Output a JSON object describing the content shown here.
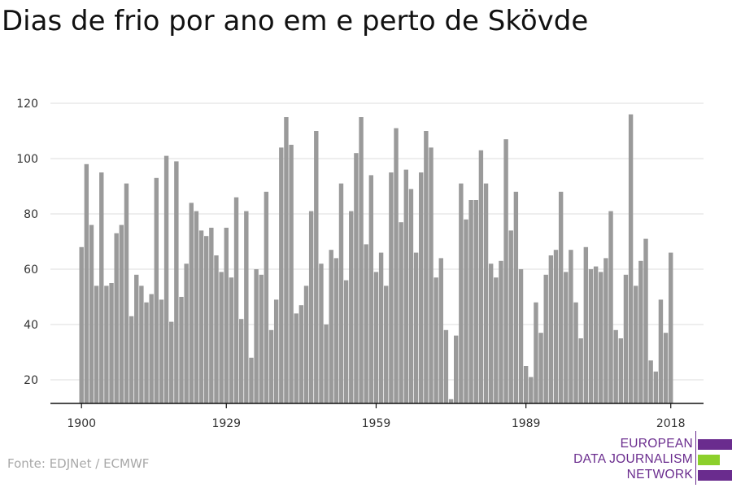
{
  "title": "Dias de frio por ano em e perto de Skövde",
  "source": "Fonte: EDJNet / ECMWF",
  "logo": {
    "lines": [
      "EUROPEAN",
      "DATA JOURNALISM",
      "NETWORK"
    ],
    "colors": {
      "purple": "#6a2c8e",
      "green": "#8cd02b"
    }
  },
  "colors": {
    "bar": "#9a9a9a",
    "grid": "#dddddd",
    "axis": "#111111",
    "text": "#333333"
  },
  "chart_data": {
    "type": "bar",
    "title": "Dias de frio por ano em e perto de Skövde",
    "xlabel": "",
    "ylabel": "",
    "x_tick_labels": [
      "1900",
      "1929",
      "1959",
      "1989",
      "2018"
    ],
    "y_ticks": [
      20,
      40,
      60,
      80,
      100,
      120
    ],
    "ylim": [
      11,
      125
    ],
    "grid": true,
    "categories": [
      1900,
      1901,
      1902,
      1903,
      1904,
      1905,
      1906,
      1907,
      1908,
      1909,
      1910,
      1911,
      1912,
      1913,
      1914,
      1915,
      1916,
      1917,
      1918,
      1919,
      1920,
      1921,
      1922,
      1923,
      1924,
      1925,
      1926,
      1927,
      1928,
      1929,
      1930,
      1931,
      1932,
      1933,
      1934,
      1935,
      1936,
      1937,
      1938,
      1939,
      1940,
      1941,
      1942,
      1943,
      1944,
      1945,
      1946,
      1947,
      1948,
      1949,
      1950,
      1951,
      1952,
      1953,
      1954,
      1955,
      1956,
      1957,
      1958,
      1959,
      1960,
      1961,
      1962,
      1963,
      1964,
      1965,
      1966,
      1967,
      1968,
      1969,
      1970,
      1971,
      1972,
      1973,
      1974,
      1975,
      1976,
      1977,
      1978,
      1979,
      1980,
      1981,
      1982,
      1983,
      1984,
      1985,
      1986,
      1987,
      1988,
      1989,
      1990,
      1991,
      1992,
      1993,
      1994,
      1995,
      1996,
      1997,
      1998,
      1999,
      2000,
      2001,
      2002,
      2003,
      2004,
      2005,
      2006,
      2007,
      2008,
      2009,
      2010,
      2011,
      2012,
      2013,
      2014,
      2015,
      2016,
      2017,
      2018
    ],
    "values": [
      68,
      98,
      76,
      54,
      95,
      54,
      55,
      73,
      76,
      91,
      43,
      58,
      54,
      48,
      51,
      93,
      49,
      101,
      41,
      99,
      50,
      62,
      84,
      81,
      74,
      72,
      75,
      65,
      59,
      75,
      57,
      86,
      42,
      81,
      28,
      60,
      58,
      88,
      38,
      49,
      104,
      115,
      105,
      44,
      47,
      54,
      81,
      110,
      62,
      40,
      67,
      64,
      91,
      56,
      81,
      102,
      115,
      69,
      94,
      59,
      66,
      54,
      95,
      111,
      77,
      96,
      89,
      66,
      95,
      110,
      104,
      57,
      64,
      38,
      13,
      36,
      91,
      78,
      85,
      85,
      103,
      91,
      62,
      57,
      63,
      107,
      74,
      88,
      60,
      25,
      21,
      48,
      37,
      58,
      65,
      67,
      88,
      59,
      67,
      48,
      35,
      68,
      60,
      61,
      59,
      64,
      81,
      38,
      35,
      58,
      116,
      54,
      63,
      71,
      27,
      23,
      49,
      37,
      66
    ]
  }
}
